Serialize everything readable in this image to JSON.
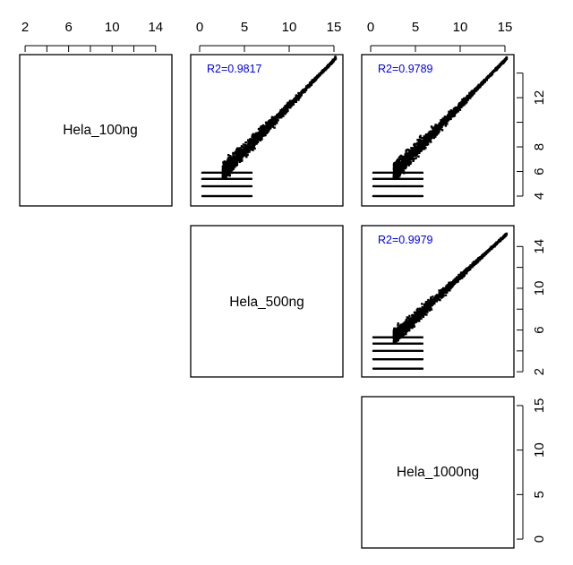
{
  "chart_data": {
    "type": "scatter-matrix",
    "variables": [
      "Hela_100ng",
      "Hela_500ng",
      "Hela_1000ng"
    ],
    "r2_color": "#0000ee",
    "top_axis": [
      {
        "col": 0,
        "ticks": [
          2,
          4,
          6,
          8,
          10,
          12,
          14
        ],
        "labeled": [
          2,
          6,
          10,
          14
        ],
        "lim": [
          1.5,
          15.5
        ]
      },
      {
        "col": 1,
        "ticks": [
          0,
          5,
          10,
          15
        ],
        "labeled": [
          0,
          5,
          10,
          15
        ],
        "lim": [
          -1,
          16
        ]
      },
      {
        "col": 2,
        "ticks": [
          0,
          5,
          10,
          15
        ],
        "labeled": [
          0,
          5,
          10,
          15
        ],
        "lim": [
          -1,
          16
        ]
      }
    ],
    "right_axis": [
      {
        "row": 0,
        "ticks": [
          4,
          6,
          8,
          10,
          12,
          14
        ],
        "labeled": [
          4,
          6,
          8,
          12
        ],
        "lim": [
          3.2,
          15.5
        ]
      },
      {
        "row": 1,
        "ticks": [
          2,
          4,
          6,
          8,
          10,
          12,
          14
        ],
        "labeled": [
          2,
          6,
          10,
          14
        ],
        "lim": [
          1.5,
          16
        ]
      },
      {
        "row": 2,
        "ticks": [
          0,
          5,
          10,
          15
        ],
        "labeled": [
          0,
          5,
          10,
          15
        ],
        "lim": [
          -1,
          16
        ]
      }
    ],
    "panels": [
      {
        "row": 0,
        "col": 1,
        "xvar": "Hela_500ng",
        "yvar": "Hela_100ng",
        "r2": "R2=0.9817",
        "xlim": [
          -1,
          16
        ],
        "ylim": [
          3.2,
          15.5
        ],
        "floor_y": [
          4.0,
          4.8,
          5.4,
          5.9
        ],
        "start_x": 0.3,
        "diag_slope": 1.0
      },
      {
        "row": 0,
        "col": 2,
        "xvar": "Hela_1000ng",
        "yvar": "Hela_100ng",
        "r2": "R2=0.9789",
        "xlim": [
          -1,
          16
        ],
        "ylim": [
          3.2,
          15.5
        ],
        "floor_y": [
          4.0,
          4.8,
          5.4,
          5.9
        ],
        "start_x": 0.3,
        "diag_slope": 1.0
      },
      {
        "row": 1,
        "col": 2,
        "xvar": "Hela_1000ng",
        "yvar": "Hela_500ng",
        "r2": "R2=0.9979",
        "xlim": [
          -1,
          16
        ],
        "ylim": [
          1.5,
          16
        ],
        "floor_y": [
          2.3,
          3.2,
          4.0,
          4.7,
          5.3
        ],
        "start_x": 0.3,
        "diag_slope": 1.0
      }
    ]
  }
}
